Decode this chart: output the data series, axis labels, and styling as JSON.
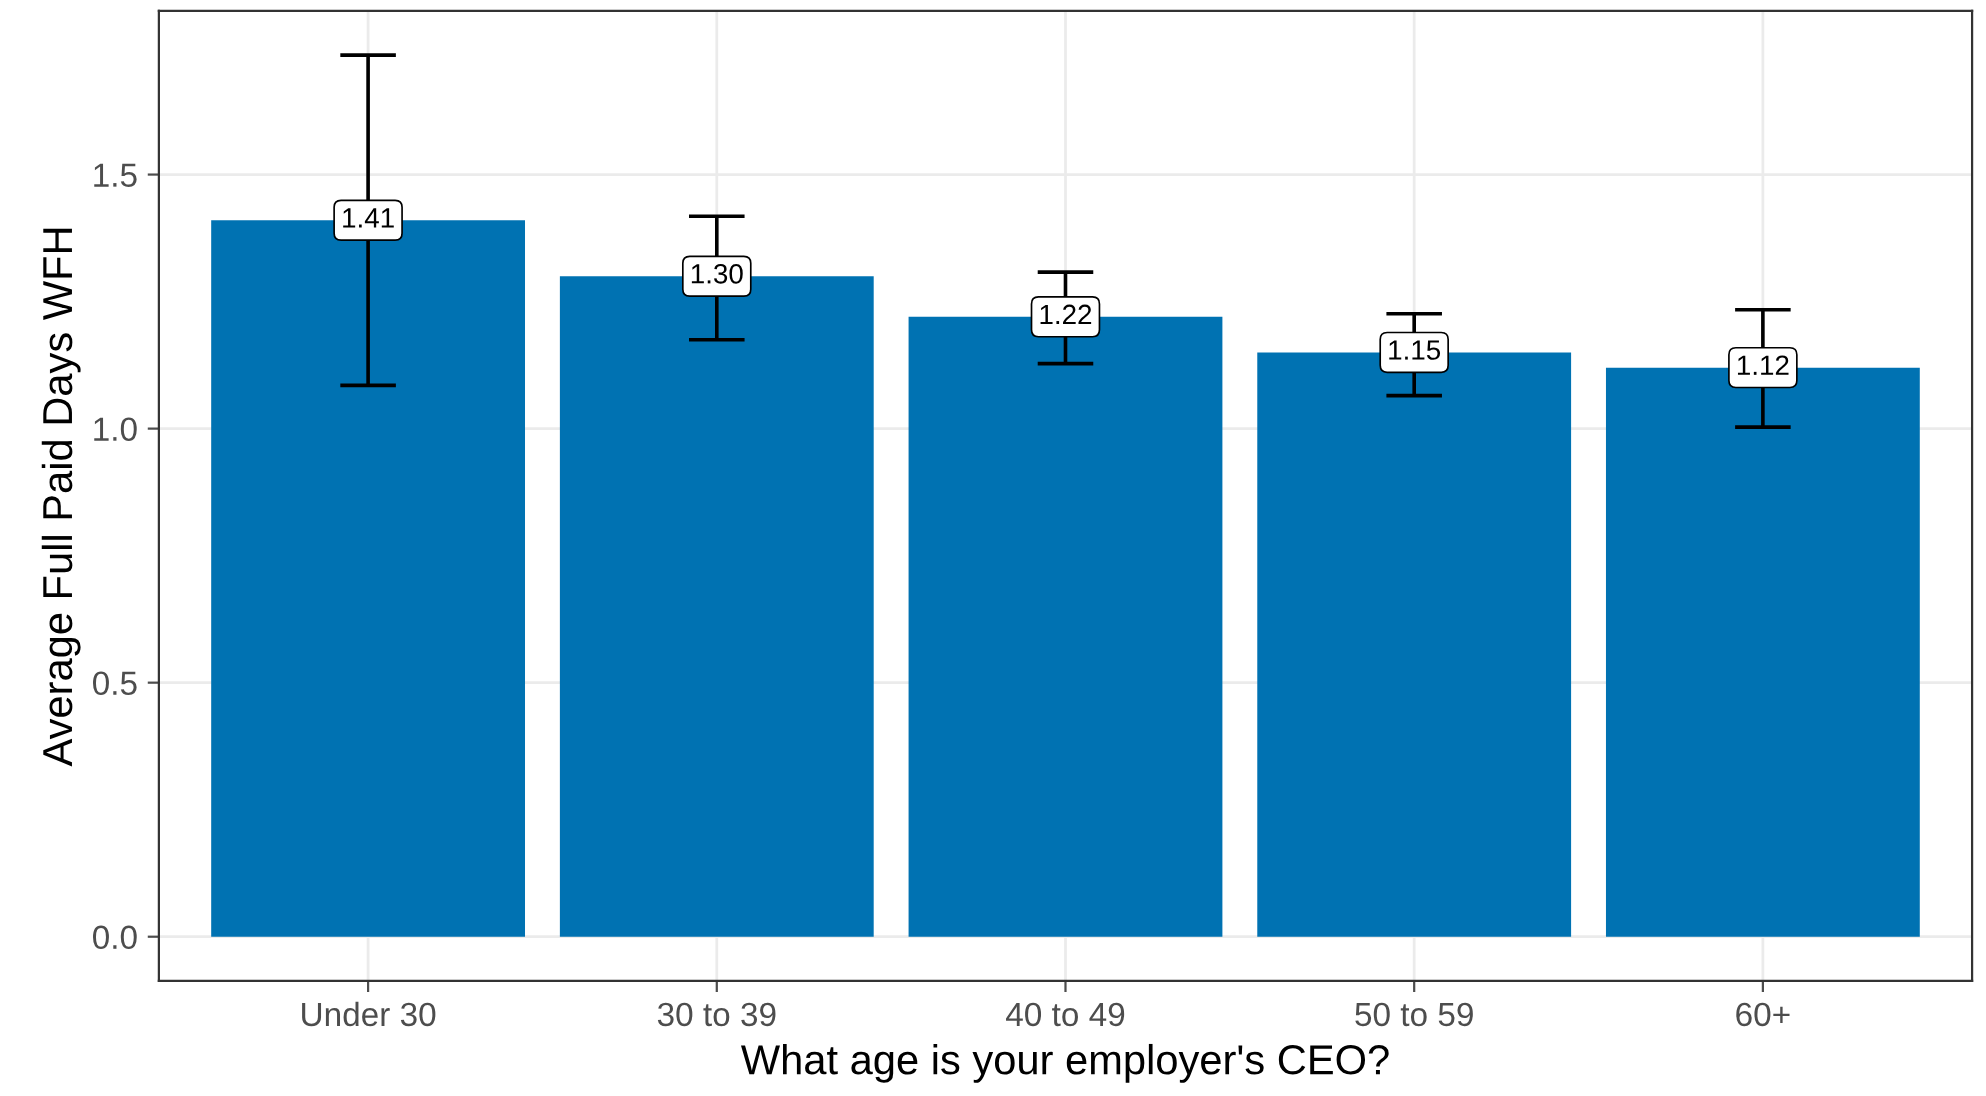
{
  "chart_data": {
    "type": "bar",
    "xlabel": "What age is your employer's CEO?",
    "ylabel": "Average Full Paid Days WFH",
    "categories": [
      "Under 30",
      "30 to 39",
      "40 to 49",
      "50 to 59",
      "60+"
    ],
    "values": [
      1.41,
      1.3,
      1.22,
      1.15,
      1.12
    ],
    "value_labels": [
      "1.41",
      "1.30",
      "1.22",
      "1.15",
      "1.12"
    ],
    "errors": [
      [
        1.085,
        1.735
      ],
      [
        1.175,
        1.418
      ],
      [
        1.128,
        1.308
      ],
      [
        1.065,
        1.226
      ],
      [
        1.003,
        1.234
      ]
    ],
    "color": "#0072b2",
    "ylim": [
      -0.087,
      1.822
    ],
    "yticks": [
      {
        "value": 0,
        "label": "0.0"
      },
      {
        "value": 0.5,
        "label": "0.5"
      },
      {
        "value": 1,
        "label": "1.0"
      },
      {
        "value": 1.5,
        "label": "1.5"
      }
    ],
    "grid": true
  }
}
